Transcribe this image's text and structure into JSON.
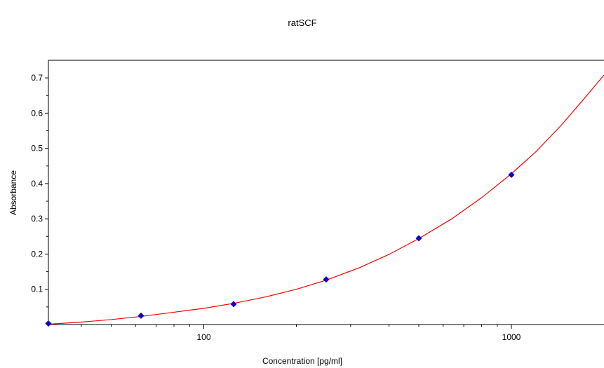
{
  "chart_data": {
    "type": "scatter",
    "title": "ratSCF",
    "xlabel": "Concentration [pg/ml]",
    "ylabel": "Absorbance",
    "x_scale": "log",
    "xlim": [
      31.25,
      2000
    ],
    "ylim": [
      0,
      0.75
    ],
    "x_ticks": [
      100,
      1000
    ],
    "y_ticks": [
      0.1,
      0.2,
      0.3,
      0.4,
      0.5,
      0.6,
      0.7
    ],
    "grid": false,
    "series": [
      {
        "points": [
          {
            "x": 31.25,
            "y": 0.003
          },
          {
            "x": 62.5,
            "y": 0.025
          },
          {
            "x": 125,
            "y": 0.058
          },
          {
            "x": 250,
            "y": 0.128
          },
          {
            "x": 500,
            "y": 0.245
          },
          {
            "x": 1000,
            "y": 0.425
          }
        ],
        "color": "#0000cc",
        "marker": "diamond"
      },
      {
        "curve": [
          {
            "x": 31.25,
            "y": 0.001
          },
          {
            "x": 40,
            "y": 0.007
          },
          {
            "x": 50,
            "y": 0.014
          },
          {
            "x": 62.5,
            "y": 0.023
          },
          {
            "x": 80,
            "y": 0.035
          },
          {
            "x": 100,
            "y": 0.046
          },
          {
            "x": 125,
            "y": 0.06
          },
          {
            "x": 160,
            "y": 0.079
          },
          {
            "x": 200,
            "y": 0.1
          },
          {
            "x": 250,
            "y": 0.126
          },
          {
            "x": 320,
            "y": 0.161
          },
          {
            "x": 400,
            "y": 0.199
          },
          {
            "x": 500,
            "y": 0.244
          },
          {
            "x": 640,
            "y": 0.3
          },
          {
            "x": 800,
            "y": 0.36
          },
          {
            "x": 1000,
            "y": 0.428
          },
          {
            "x": 1200,
            "y": 0.49
          },
          {
            "x": 1450,
            "y": 0.565
          },
          {
            "x": 1700,
            "y": 0.635
          },
          {
            "x": 2000,
            "y": 0.708
          }
        ],
        "color": "#ff0000"
      }
    ]
  }
}
